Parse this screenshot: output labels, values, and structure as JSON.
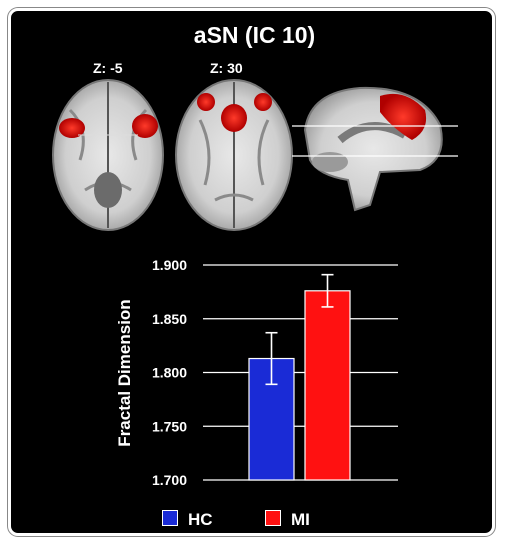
{
  "figure": {
    "title": "aSN (IC 10)",
    "slices": [
      {
        "label": "Z: -5"
      },
      {
        "label": "Z: 30"
      }
    ]
  },
  "colors": {
    "background": "#000000",
    "hc": "#1a2bd6",
    "mi": "#ff1111",
    "activation": "#e81010"
  },
  "chart_data": {
    "type": "bar",
    "categories": [
      "HC",
      "MI"
    ],
    "values": [
      1.813,
      1.876
    ],
    "error": [
      0.024,
      0.015
    ],
    "ylabel": "Fractal Dimension",
    "xlabel": "",
    "ylim": [
      1.7,
      1.9
    ],
    "yticks": [
      "1.700",
      "1.750",
      "1.800",
      "1.850",
      "1.900"
    ],
    "grid": true,
    "legend": "bottom",
    "legend_entries": [
      "HC",
      "MI"
    ]
  }
}
